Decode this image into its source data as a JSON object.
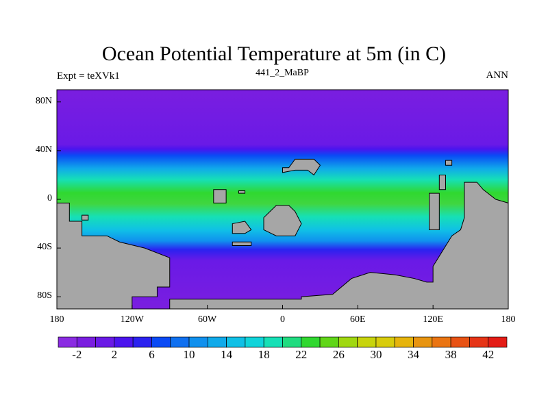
{
  "title": "Ocean Potential Temperature at 5m (in C)",
  "subtitle_left": "Expt = teXVk1",
  "subtitle_center": "441_2_MaBP",
  "subtitle_right": "ANN",
  "y_ticks": [
    {
      "label": "80N",
      "lat": 80
    },
    {
      "label": "40N",
      "lat": 40
    },
    {
      "label": "0",
      "lat": 0
    },
    {
      "label": "40S",
      "lat": -40
    },
    {
      "label": "80S",
      "lat": -80
    }
  ],
  "x_ticks": [
    {
      "label": "180",
      "lon": -180
    },
    {
      "label": "120W",
      "lon": -120
    },
    {
      "label": "60W",
      "lon": -60
    },
    {
      "label": "0",
      "lon": 0
    },
    {
      "label": "60E",
      "lon": 60
    },
    {
      "label": "120E",
      "lon": 120
    },
    {
      "label": "180",
      "lon": 180
    }
  ],
  "colorbar": {
    "labels": [
      "-2",
      "2",
      "6",
      "10",
      "14",
      "18",
      "22",
      "26",
      "30",
      "34",
      "38",
      "42"
    ],
    "colors": [
      "#8a2be2",
      "#7a1ee0",
      "#6a1ae6",
      "#4b14ee",
      "#2b22f0",
      "#0a4af5",
      "#0f70f0",
      "#1090ee",
      "#10aaea",
      "#10c0e6",
      "#10d4da",
      "#16e0b6",
      "#20dc80",
      "#30d830",
      "#60d618",
      "#a0d810",
      "#c8d40c",
      "#d8cc0c",
      "#e6b40c",
      "#e89410",
      "#ea7412",
      "#e85214",
      "#e63416",
      "#e41c16"
    ]
  },
  "field": {
    "var": "potential temperature",
    "units": "C",
    "lon_range": [
      -180,
      180
    ],
    "lat_range": [
      -90,
      90
    ],
    "zones": [
      {
        "lat_range": [
          40,
          90
        ],
        "temp": -1.5
      },
      {
        "lat_range": [
          20,
          40
        ],
        "temp": 12
      },
      {
        "lat_range": [
          8,
          20
        ],
        "temp": 20
      },
      {
        "lat_range": [
          -12,
          8
        ],
        "temp": 27
      },
      {
        "lat_range": [
          -25,
          -12
        ],
        "temp": 21
      },
      {
        "lat_range": [
          -40,
          -25
        ],
        "temp": 13
      },
      {
        "lat_range": [
          -50,
          -40
        ],
        "temp": 6
      },
      {
        "lat_range": [
          -90,
          -50
        ],
        "temp": -1
      }
    ]
  },
  "land_masses": [
    {
      "name": "western-americas-continent",
      "polygon": [
        [
          -180,
          -3
        ],
        [
          -170,
          -3
        ],
        [
          -170,
          -18
        ],
        [
          -160,
          -18
        ],
        [
          -160,
          -30
        ],
        [
          -140,
          -30
        ],
        [
          -130,
          -35
        ],
        [
          -110,
          -40
        ],
        [
          -90,
          -48
        ],
        [
          -90,
          -72
        ],
        [
          -100,
          -72
        ],
        [
          -100,
          -80
        ],
        [
          -120,
          -80
        ],
        [
          -120,
          -90
        ],
        [
          -180,
          -90
        ]
      ]
    },
    {
      "name": "western-small-island",
      "polygon": [
        [
          -160,
          -13
        ],
        [
          -155,
          -13
        ],
        [
          -155,
          -17
        ],
        [
          -160,
          -17
        ]
      ]
    },
    {
      "name": "antarctic-continent",
      "polygon": [
        [
          -90,
          -90
        ],
        [
          -90,
          -82
        ],
        [
          15,
          -82
        ],
        [
          15,
          -80
        ],
        [
          40,
          -78
        ],
        [
          55,
          -65
        ],
        [
          70,
          -60
        ],
        [
          90,
          -62
        ],
        [
          105,
          -65
        ],
        [
          115,
          -68
        ],
        [
          120,
          -68
        ],
        [
          120,
          -55
        ],
        [
          135,
          -30
        ],
        [
          142,
          -25
        ],
        [
          145,
          -15
        ],
        [
          145,
          14
        ],
        [
          155,
          14
        ],
        [
          160,
          8
        ],
        [
          170,
          0
        ],
        [
          180,
          -3
        ],
        [
          180,
          -90
        ]
      ]
    },
    {
      "name": "eastern-small-island",
      "polygon": [
        [
          130,
          32
        ],
        [
          135,
          32
        ],
        [
          135,
          28
        ],
        [
          130,
          28
        ]
      ]
    },
    {
      "name": "east-asia-peninsula",
      "polygon": [
        [
          125,
          20
        ],
        [
          130,
          20
        ],
        [
          130,
          8
        ],
        [
          125,
          8
        ]
      ]
    },
    {
      "name": "indonesian-island",
      "polygon": [
        [
          117,
          5
        ],
        [
          125,
          5
        ],
        [
          125,
          -25
        ],
        [
          117,
          -25
        ]
      ]
    },
    {
      "name": "northern-island",
      "polygon": [
        [
          0,
          26
        ],
        [
          5,
          26
        ],
        [
          10,
          33
        ],
        [
          25,
          33
        ],
        [
          30,
          28
        ],
        [
          25,
          20
        ],
        [
          20,
          24
        ],
        [
          10,
          24
        ],
        [
          0,
          22
        ]
      ]
    },
    {
      "name": "eastern-african-island",
      "polygon": [
        [
          -10,
          -10
        ],
        [
          -5,
          -5
        ],
        [
          5,
          -5
        ],
        [
          10,
          -10
        ],
        [
          15,
          -20
        ],
        [
          10,
          -30
        ],
        [
          -5,
          -30
        ],
        [
          -15,
          -25
        ],
        [
          -15,
          -15
        ]
      ]
    },
    {
      "name": "central-island",
      "polygon": [
        [
          -40,
          -20
        ],
        [
          -30,
          -18
        ],
        [
          -25,
          -25
        ],
        [
          -30,
          -28
        ],
        [
          -40,
          -28
        ]
      ]
    },
    {
      "name": "western-island",
      "polygon": [
        [
          -55,
          8
        ],
        [
          -45,
          8
        ],
        [
          -45,
          -3
        ],
        [
          -55,
          -3
        ]
      ]
    },
    {
      "name": "southern-island-chain",
      "polygon": [
        [
          -40,
          -35
        ],
        [
          -25,
          -35
        ],
        [
          -25,
          -38
        ],
        [
          -40,
          -38
        ]
      ]
    },
    {
      "name": "small-northern-island",
      "polygon": [
        [
          -35,
          7
        ],
        [
          -30,
          7
        ],
        [
          -30,
          5
        ],
        [
          -35,
          5
        ]
      ]
    }
  ]
}
